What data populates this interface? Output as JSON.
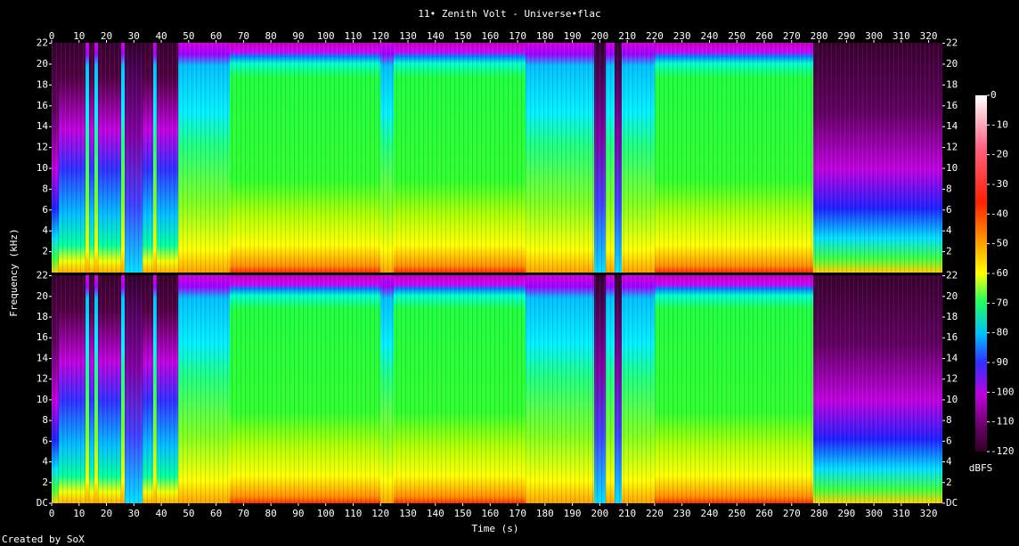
{
  "chart_data": [
    {
      "type": "spectrogram",
      "title": "11• Zenith Volt - Universe•flac",
      "xlabel": "Time (s)",
      "ylabel": "Frequency (kHz)",
      "xlim": [
        0,
        325
      ],
      "xticks": [
        0,
        10,
        20,
        30,
        40,
        50,
        60,
        70,
        80,
        90,
        100,
        110,
        120,
        130,
        140,
        150,
        160,
        170,
        180,
        190,
        200,
        210,
        220,
        230,
        240,
        250,
        260,
        270,
        280,
        290,
        300,
        310,
        320
      ],
      "ylim": [
        0,
        22.05
      ],
      "yticks": [
        2,
        4,
        6,
        8,
        10,
        12,
        14,
        16,
        18,
        20,
        22
      ],
      "colorbar_label": "dBFS",
      "zlim": [
        -120,
        0
      ],
      "zticks": [
        0,
        -10,
        -20,
        -30,
        -40,
        -50,
        -60,
        -70,
        -80,
        -90,
        -100,
        -110,
        -120
      ],
      "credit": "Created by SoX"
    },
    {
      "type": "spectrogram",
      "xlim": [
        0,
        325
      ],
      "ylim": [
        0,
        22.05
      ],
      "yticks": [
        {
          "value": 0,
          "label": "DC"
        },
        2,
        4,
        6,
        8,
        10,
        12,
        14,
        16,
        18,
        20,
        22
      ]
    }
  ]
}
